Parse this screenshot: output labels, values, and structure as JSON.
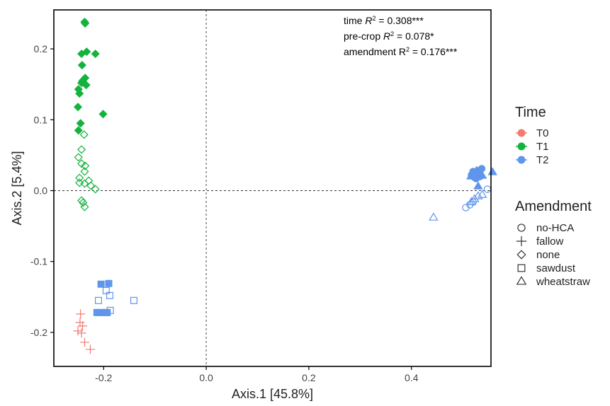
{
  "chart_data": {
    "type": "scatter",
    "xlabel": "Axis.1   [45.8%]",
    "ylabel": "Axis.2   [5.4%]",
    "xlim": [
      -0.297,
      0.555
    ],
    "ylim": [
      -0.248,
      0.255
    ],
    "xticks": [
      -0.2,
      0.0,
      0.2,
      0.4
    ],
    "xtick_labels": [
      "-0.2",
      "0.0",
      "0.2",
      "0.4"
    ],
    "yticks": [
      -0.2,
      -0.1,
      0.0,
      0.1,
      0.2
    ],
    "ytick_labels": [
      "-0.2",
      "-0.1",
      "0.0",
      "0.1",
      "0.2"
    ],
    "reference_lines": {
      "x": 0,
      "y": 0,
      "style": "dashed"
    },
    "annotations": [
      {
        "prefix": "time ",
        "stat": "R",
        "sup": "2",
        "suffix": " = 0.308***",
        "italic_stat": true
      },
      {
        "prefix": "pre-crop ",
        "stat": "R",
        "sup": "2",
        "suffix": " = 0.078*",
        "italic_stat": true
      },
      {
        "prefix": "amendment ",
        "stat": "R",
        "sup": "2",
        "suffix": " = 0.176***",
        "italic_stat": false
      }
    ],
    "legend_placement": "right",
    "legend_time": {
      "title": "Time",
      "items": [
        {
          "label": "T0",
          "color": "#f17b72"
        },
        {
          "label": "T1",
          "color": "#13b33d"
        },
        {
          "label": "T2",
          "color": "#5f95eb"
        }
      ]
    },
    "legend_amendment": {
      "title": "Amendment",
      "items": [
        {
          "label": "no-HCA",
          "shape": "circle"
        },
        {
          "label": "fallow",
          "shape": "plus"
        },
        {
          "label": "none",
          "shape": "diamond"
        },
        {
          "label": "sawdust",
          "shape": "square"
        },
        {
          "label": "wheatstraw",
          "shape": "triangle"
        }
      ]
    },
    "series": [
      {
        "name": "T0",
        "color": "#f17b72",
        "amendment": "fallow",
        "shape": "plus",
        "filled": false,
        "points": [
          [
            -0.245,
            -0.174
          ],
          [
            -0.246,
            -0.186
          ],
          [
            -0.241,
            -0.191
          ],
          [
            -0.25,
            -0.198
          ],
          [
            -0.243,
            -0.201
          ],
          [
            -0.237,
            -0.214
          ],
          [
            -0.226,
            -0.224
          ]
        ]
      },
      {
        "name": "T1",
        "color": "#13b33d",
        "amendment": "none",
        "shape": "diamond",
        "filled": true,
        "points": [
          [
            -0.237,
            0.238
          ],
          [
            -0.236,
            0.236
          ],
          [
            -0.243,
            0.193
          ],
          [
            -0.233,
            0.196
          ],
          [
            -0.216,
            0.193
          ],
          [
            -0.242,
            0.177
          ],
          [
            -0.236,
            0.159
          ],
          [
            -0.241,
            0.155
          ],
          [
            -0.243,
            0.152
          ],
          [
            -0.234,
            0.149
          ],
          [
            -0.249,
            0.143
          ],
          [
            -0.247,
            0.137
          ],
          [
            -0.25,
            0.118
          ],
          [
            -0.201,
            0.108
          ],
          [
            -0.245,
            0.095
          ],
          [
            -0.249,
            0.085
          ]
        ]
      },
      {
        "name": "T1",
        "color": "#13b33d",
        "amendment": "none",
        "shape": "diamond",
        "filled": false,
        "points": [
          [
            -0.238,
            0.079
          ],
          [
            -0.243,
            0.058
          ],
          [
            -0.249,
            0.047
          ],
          [
            -0.243,
            0.038
          ],
          [
            -0.236,
            0.035
          ],
          [
            -0.237,
            0.027
          ],
          [
            -0.247,
            0.018
          ],
          [
            -0.229,
            0.014
          ],
          [
            -0.247,
            0.011
          ],
          [
            -0.237,
            0.01
          ],
          [
            -0.225,
            0.007
          ],
          [
            -0.216,
            0.002
          ],
          [
            -0.243,
            -0.014
          ],
          [
            -0.24,
            -0.017
          ],
          [
            -0.237,
            -0.023
          ]
        ]
      },
      {
        "name": "T2",
        "color": "#5f95eb",
        "amendment": "sawdust",
        "shape": "square",
        "filled": true,
        "points": [
          [
            -0.205,
            -0.132
          ],
          [
            -0.19,
            -0.131
          ],
          [
            -0.213,
            -0.172
          ],
          [
            -0.206,
            -0.172
          ],
          [
            -0.197,
            -0.172
          ],
          [
            -0.193,
            -0.172
          ]
        ]
      },
      {
        "name": "T2",
        "color": "#5f95eb",
        "amendment": "sawdust",
        "shape": "square",
        "filled": false,
        "points": [
          [
            -0.195,
            -0.141
          ],
          [
            -0.188,
            -0.148
          ],
          [
            -0.21,
            -0.155
          ],
          [
            -0.141,
            -0.155
          ],
          [
            -0.187,
            -0.169
          ]
        ]
      },
      {
        "name": "T2",
        "color": "#5f95eb",
        "amendment": "no-HCA",
        "shape": "circle",
        "filled": true,
        "points": [
          [
            0.537,
            0.031
          ],
          [
            0.53,
            0.028
          ],
          [
            0.52,
            0.027
          ],
          [
            0.528,
            0.022
          ],
          [
            0.534,
            0.02
          ],
          [
            0.522,
            0.019
          ],
          [
            0.517,
            0.022
          ],
          [
            0.526,
            0.017
          ]
        ]
      },
      {
        "name": "T2",
        "color": "#5f95eb",
        "amendment": "no-HCA",
        "shape": "circle",
        "filled": false,
        "points": [
          [
            0.548,
            0.002
          ],
          [
            0.52,
            -0.016
          ],
          [
            0.514,
            -0.02
          ],
          [
            0.506,
            -0.024
          ]
        ]
      },
      {
        "name": "T2",
        "color": "#5f95eb",
        "amendment": "wheatstraw",
        "shape": "triangle",
        "filled": true,
        "points": [
          [
            0.558,
            0.026
          ],
          [
            0.527,
            0.028
          ],
          [
            0.516,
            0.02
          ],
          [
            0.538,
            0.021
          ],
          [
            0.53,
            0.006
          ]
        ]
      },
      {
        "name": "T2",
        "color": "#5f95eb",
        "amendment": "wheatstraw",
        "shape": "triangle",
        "filled": false,
        "points": [
          [
            0.443,
            -0.038
          ],
          [
            0.538,
            -0.006
          ],
          [
            0.53,
            -0.008
          ],
          [
            0.523,
            -0.012
          ],
          [
            0.517,
            -0.016
          ]
        ]
      }
    ]
  }
}
